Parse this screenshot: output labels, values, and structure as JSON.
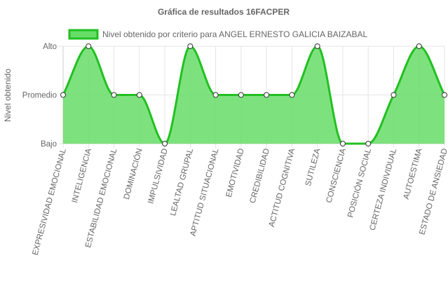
{
  "chart_data": {
    "type": "line",
    "title": "Gráfica de resultados 16FACPER",
    "ylabel": "Nivel obtenido",
    "xlabel": "",
    "y_levels": [
      "Bajo",
      "Promedio",
      "Alto"
    ],
    "categories": [
      "EXPRESIVIDAD EMOCIONAL",
      "INTELIGENCIA",
      "ESTABILIDAD EMOCIONAL",
      "DOMINACIÓN",
      "IMPULSIVIDAD",
      "LEALTAD GRUPAL",
      "APTITUD SITUACIONAL",
      "EMOTIVIDAD",
      "CREDIBILIDAD",
      "ACTITUD COGNITIVA",
      "SUTILEZA",
      "CONSCIENCIA",
      "POSICIÓN SOCIAL",
      "CERTEZA INDIVIDUAL",
      "AUTOESTIMA",
      "ESTADO DE ANSIEDAD"
    ],
    "series": [
      {
        "name": "Nivel obtenido por criterio para ANGEL ERNESTO GALICIA BAIZABAL",
        "values": [
          1,
          2,
          1,
          1,
          0,
          2,
          1,
          1,
          1,
          1,
          2,
          0,
          0,
          1,
          2,
          1
        ],
        "color": "#22c022",
        "fill": "#66dd66"
      }
    ],
    "ylim": [
      0,
      2
    ],
    "grid": true,
    "legend_position": "top"
  }
}
